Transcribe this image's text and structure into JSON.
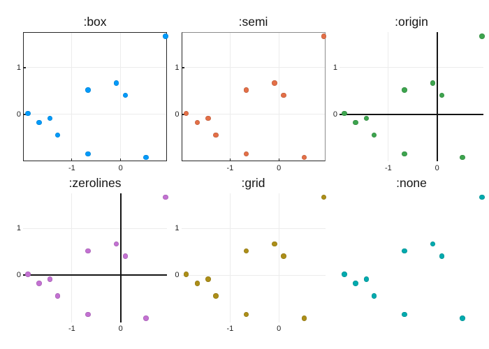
{
  "figure": {
    "background": "#ffffff"
  },
  "colors": {
    "frame": "#262626",
    "frame_light": "#8c8c8c",
    "grid": "#ececec",
    "zeroline": "#141414",
    "tick_text": "#1c1c1c",
    "title_text": "#141414"
  },
  "chart_data": [
    {
      "type": "scatter",
      "title": ":box",
      "framestyle": "box",
      "series_color": "#009AFA",
      "points": [
        [
          0.92,
          1.67
        ],
        [
          -0.09,
          0.67
        ],
        [
          0.1,
          0.41
        ],
        [
          -0.67,
          0.52
        ],
        [
          -1.9,
          0.02
        ],
        [
          -1.67,
          -0.17
        ],
        [
          -1.45,
          -0.08
        ],
        [
          -1.29,
          -0.44
        ],
        [
          -0.67,
          -0.84
        ],
        [
          0.52,
          -0.92
        ]
      ],
      "xlim": [
        -2.0,
        0.95
      ],
      "ylim": [
        -1.0,
        1.76
      ],
      "xticks": [
        -1,
        0
      ],
      "xtick_labels": [
        "-1",
        "0"
      ],
      "yticks": [
        0,
        1
      ],
      "ytick_labels": [
        "0",
        "1"
      ],
      "grid": true,
      "show_tick_labels": true,
      "legend": "none"
    },
    {
      "type": "scatter",
      "title": ":semi",
      "framestyle": "semi",
      "series_color": "#E36F47",
      "points": [
        [
          0.92,
          1.67
        ],
        [
          -0.09,
          0.67
        ],
        [
          0.1,
          0.41
        ],
        [
          -0.67,
          0.52
        ],
        [
          -1.9,
          0.02
        ],
        [
          -1.67,
          -0.17
        ],
        [
          -1.45,
          -0.08
        ],
        [
          -1.29,
          -0.44
        ],
        [
          -0.67,
          -0.84
        ],
        [
          0.52,
          -0.92
        ]
      ],
      "xlim": [
        -2.0,
        0.95
      ],
      "ylim": [
        -1.0,
        1.76
      ],
      "xticks": [
        -1,
        0
      ],
      "xtick_labels": [
        "-1",
        "0"
      ],
      "yticks": [
        0,
        1
      ],
      "ytick_labels": [
        "0",
        "1"
      ],
      "grid": true,
      "show_tick_labels": true,
      "legend": "none"
    },
    {
      "type": "scatter",
      "title": ":origin",
      "framestyle": "origin",
      "series_color": "#3DA44E",
      "points": [
        [
          0.92,
          1.67
        ],
        [
          -0.09,
          0.67
        ],
        [
          0.1,
          0.41
        ],
        [
          -0.67,
          0.52
        ],
        [
          -1.9,
          0.02
        ],
        [
          -1.67,
          -0.17
        ],
        [
          -1.45,
          -0.08
        ],
        [
          -1.29,
          -0.44
        ],
        [
          -0.67,
          -0.84
        ],
        [
          0.52,
          -0.92
        ]
      ],
      "xlim": [
        -2.0,
        0.95
      ],
      "ylim": [
        -1.0,
        1.76
      ],
      "xticks": [
        -1,
        0
      ],
      "xtick_labels": [
        "-1",
        "0"
      ],
      "yticks": [
        0,
        1
      ],
      "ytick_labels": [
        "0",
        "1"
      ],
      "grid": true,
      "show_tick_labels": true,
      "legend": "none"
    },
    {
      "type": "scatter",
      "title": ":zerolines",
      "framestyle": "zerolines",
      "series_color": "#C371D2",
      "points": [
        [
          0.92,
          1.67
        ],
        [
          -0.09,
          0.67
        ],
        [
          0.1,
          0.41
        ],
        [
          -0.67,
          0.52
        ],
        [
          -1.9,
          0.02
        ],
        [
          -1.67,
          -0.17
        ],
        [
          -1.45,
          -0.08
        ],
        [
          -1.29,
          -0.44
        ],
        [
          -0.67,
          -0.84
        ],
        [
          0.52,
          -0.92
        ]
      ],
      "xlim": [
        -2.0,
        0.95
      ],
      "ylim": [
        -1.0,
        1.76
      ],
      "xticks": [
        -1,
        0
      ],
      "xtick_labels": [
        "-1",
        "0"
      ],
      "yticks": [
        0,
        1
      ],
      "ytick_labels": [
        "0",
        "1"
      ],
      "grid": true,
      "show_tick_labels": true,
      "legend": "none"
    },
    {
      "type": "scatter",
      "title": ":grid",
      "framestyle": "grid",
      "series_color": "#AC8E18",
      "points": [
        [
          0.92,
          1.67
        ],
        [
          -0.09,
          0.67
        ],
        [
          0.1,
          0.41
        ],
        [
          -0.67,
          0.52
        ],
        [
          -1.9,
          0.02
        ],
        [
          -1.67,
          -0.17
        ],
        [
          -1.45,
          -0.08
        ],
        [
          -1.29,
          -0.44
        ],
        [
          -0.67,
          -0.84
        ],
        [
          0.52,
          -0.92
        ]
      ],
      "xlim": [
        -2.0,
        0.95
      ],
      "ylim": [
        -1.0,
        1.76
      ],
      "xticks": [
        -1,
        0
      ],
      "xtick_labels": [
        "-1",
        "0"
      ],
      "yticks": [
        0,
        1
      ],
      "ytick_labels": [
        "0",
        "1"
      ],
      "grid": true,
      "show_tick_labels": true,
      "legend": "none"
    },
    {
      "type": "scatter",
      "title": ":none",
      "framestyle": "none",
      "series_color": "#00AAAE",
      "points": [
        [
          0.92,
          1.67
        ],
        [
          -0.09,
          0.67
        ],
        [
          0.1,
          0.41
        ],
        [
          -0.67,
          0.52
        ],
        [
          -1.9,
          0.02
        ],
        [
          -1.67,
          -0.17
        ],
        [
          -1.45,
          -0.08
        ],
        [
          -1.29,
          -0.44
        ],
        [
          -0.67,
          -0.84
        ],
        [
          0.52,
          -0.92
        ]
      ],
      "xlim": [
        -2.0,
        0.95
      ],
      "ylim": [
        -1.0,
        1.76
      ],
      "xticks": [
        -1,
        0
      ],
      "xtick_labels": [
        "-1",
        "0"
      ],
      "yticks": [
        0,
        1
      ],
      "ytick_labels": [
        "0",
        "1"
      ],
      "grid": false,
      "show_tick_labels": false,
      "legend": "none"
    }
  ]
}
